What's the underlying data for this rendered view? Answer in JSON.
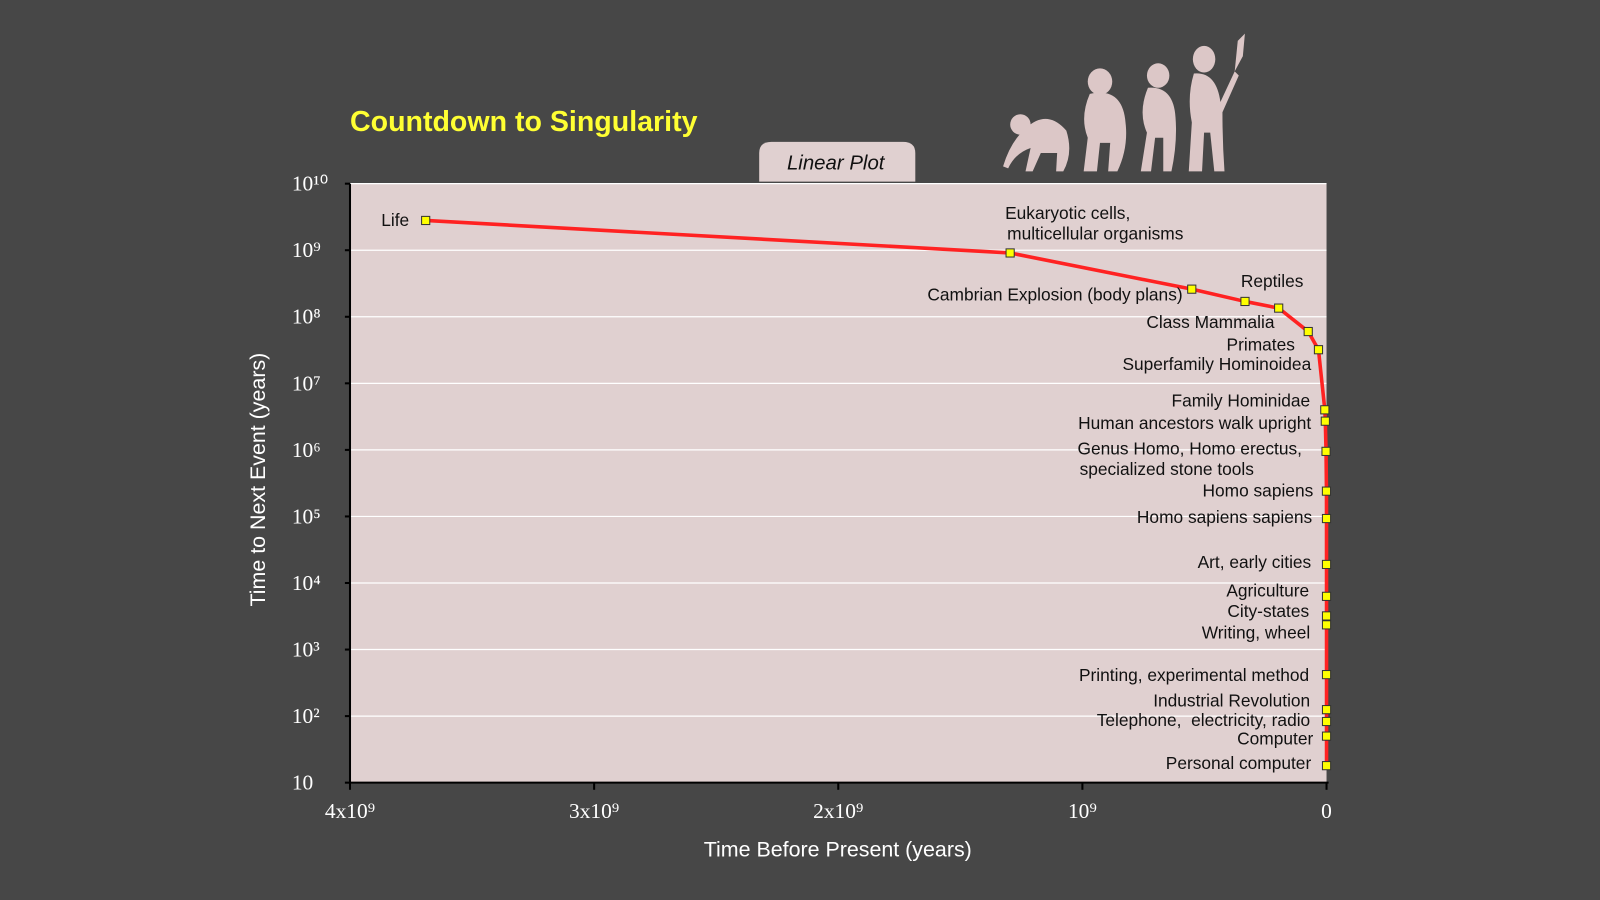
{
  "chart_data": {
    "type": "line",
    "title": "Countdown to Singularity",
    "annotation": "Linear Plot",
    "xlabel": "Time Before Present (years)",
    "ylabel": "Time to Next Event (years)",
    "xlim": [
      4000000000,
      0
    ],
    "ylim": [
      10,
      10000000000
    ],
    "ylog": true,
    "grid": true,
    "xticks": [
      {
        "value": 4000000000,
        "label": "4x10⁹"
      },
      {
        "value": 3000000000,
        "label": "3x10⁹"
      },
      {
        "value": 2000000000,
        "label": "2x10⁹"
      },
      {
        "value": 1000000000,
        "label": "10⁹"
      },
      0
    ],
    "yticks": [
      {
        "value": 10000000000,
        "label": "10¹⁰"
      },
      {
        "value": 1000000000,
        "label": "10⁹"
      },
      {
        "value": 100000000,
        "label": "10⁸"
      },
      {
        "value": 10000000,
        "label": "10⁷"
      },
      {
        "value": 1000000,
        "label": "10⁶"
      },
      {
        "value": 100000,
        "label": "10⁵"
      },
      {
        "value": 10000,
        "label": "10⁴"
      },
      {
        "value": 1000,
        "label": "10³"
      },
      {
        "value": 100,
        "label": "10²"
      },
      10
    ],
    "series": [
      {
        "color": "#ff2222",
        "marker_color": "#ffff00",
        "x": [
          3690000000,
          1296000000,
          552000000,
          334000000,
          196000000,
          75000000,
          33000000,
          7000000,
          5000000,
          2000000,
          300000,
          100000,
          30000,
          12000,
          7000,
          5000,
          550,
          230,
          120,
          60,
          25
        ],
        "values": [
          2800000000,
          910000000,
          260000000,
          170000000,
          135000000,
          60000000,
          32000000,
          4000000,
          2700000,
          950000,
          240000,
          93000,
          19000,
          6300,
          3200,
          2350,
          420,
          125,
          83,
          50,
          18
        ],
        "labels": [
          "Life",
          [
            "Eukaryotic cells,",
            "multicellular organisms"
          ],
          "Cambrian Explosion (body plans)",
          "Reptiles",
          "Class Mammalia",
          "Primates",
          "Superfamily Hominoidea",
          "Family Hominidae",
          "Human ancestors walk upright",
          [
            "Genus Homo, Homo erectus,",
            "specialized stone tools"
          ],
          "Homo sapiens",
          "Homo sapiens sapiens",
          "Art, early cities",
          "Agriculture",
          "City-states",
          "Writing, wheel",
          "Printing, experimental method",
          "Industrial Revolution",
          "Telephone,  electricity, radio",
          "Computer",
          "Personal computer"
        ]
      }
    ]
  }
}
